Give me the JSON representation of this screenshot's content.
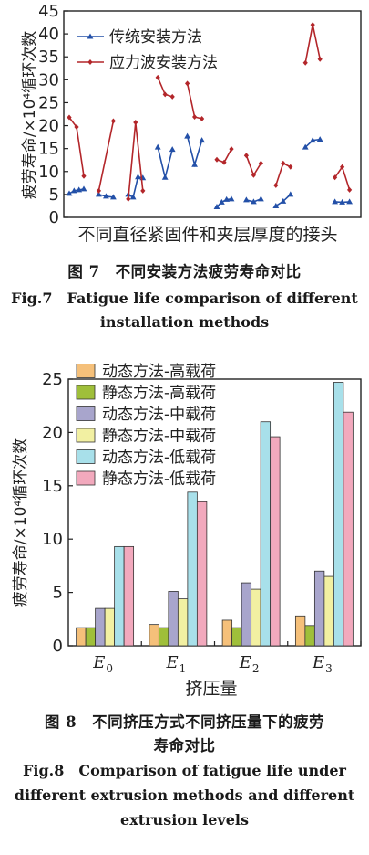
{
  "fig7": {
    "caption_cn": "图 7　不同安装方法疲劳寿命对比",
    "caption_en": "Fig.7　Fatigue life comparison of different installation methods",
    "chart_data": {
      "type": "line",
      "xlabel": "不同直径紧固件和夹层厚度的接头",
      "ylabel": "疲劳寿命/×10⁴循环次数",
      "ylim": [
        0,
        45
      ],
      "yticks": [
        0,
        5,
        10,
        15,
        20,
        25,
        30,
        35,
        40,
        45
      ],
      "legend_position": "top-left",
      "series": [
        {
          "name": "传统安装方法",
          "color": "#2350a8",
          "marker": "triangle",
          "groups": [
            [
              5.2,
              5.8,
              6.0,
              6.2
            ],
            [
              5.0,
              4.6,
              4.4
            ],
            [
              5.0,
              4.4,
              8.8,
              8.6
            ],
            [
              15.3,
              8.7,
              14.8
            ],
            [
              17.7,
              11.5,
              16.8
            ],
            [
              2.3,
              3.3,
              3.9,
              4.0
            ],
            [
              3.8,
              3.4,
              4.0
            ],
            [
              2.5,
              3.5,
              5.0
            ],
            [
              15.3,
              16.8,
              17.0
            ],
            [
              3.4,
              3.3,
              3.4
            ]
          ]
        },
        {
          "name": "应力波安装方法",
          "color": "#b3262a",
          "marker": "diamond",
          "groups": [
            [
              21.8,
              19.7,
              9.0
            ],
            [
              5.8,
              21.0
            ],
            [
              4.0,
              20.7,
              5.8
            ],
            [
              30.5,
              26.8,
              26.3
            ],
            [
              29.2,
              21.9,
              21.5
            ],
            [
              12.6,
              12.0,
              14.9
            ],
            [
              13.5,
              9.2,
              11.8
            ],
            [
              7.0,
              11.8,
              11.0
            ],
            [
              33.7,
              42.0,
              34.5
            ],
            [
              8.7,
              11.0,
              6.0
            ]
          ]
        }
      ]
    }
  },
  "fig8": {
    "caption_cn_line1": "图 8　不同挤压方式不同挤压量下的疲劳",
    "caption_cn_line2": "寿命对比",
    "caption_en_line1": "Fig.8　Comparison of fatigue life under",
    "caption_en_line2": "different extrusion methods and different",
    "caption_en_line3": "extrusion levels",
    "chart_data": {
      "type": "bar",
      "categories": [
        "E0",
        "E1",
        "E2",
        "E3"
      ],
      "category_base": "E",
      "category_subs": [
        "0",
        "1",
        "2",
        "3"
      ],
      "xlabel": "挤压量",
      "ylabel": "疲劳寿命/×10⁴循环次数",
      "ylim": [
        0,
        25
      ],
      "yticks": [
        0,
        5,
        10,
        15,
        20,
        25
      ],
      "legend_position": "top-left",
      "series": [
        {
          "name": "动态方法-高载荷",
          "color": "#f5c07a",
          "values": [
            1.7,
            2.0,
            2.4,
            2.8
          ]
        },
        {
          "name": "静态方法-高载荷",
          "color": "#9fbf3a",
          "values": [
            1.7,
            1.7,
            1.7,
            1.9
          ]
        },
        {
          "name": "动态方法-中载荷",
          "color": "#a8a5cc",
          "values": [
            3.5,
            5.1,
            5.9,
            7.0
          ]
        },
        {
          "name": "静态方法-中载荷",
          "color": "#f2f0a2",
          "values": [
            3.5,
            4.4,
            5.3,
            6.5
          ]
        },
        {
          "name": "动态方法-低载荷",
          "color": "#a8e0ea",
          "values": [
            9.3,
            14.4,
            21.0,
            24.7
          ]
        },
        {
          "name": "静态方法-低载荷",
          "color": "#f2a9bd",
          "values": [
            9.3,
            13.5,
            19.6,
            21.9
          ]
        }
      ]
    }
  }
}
